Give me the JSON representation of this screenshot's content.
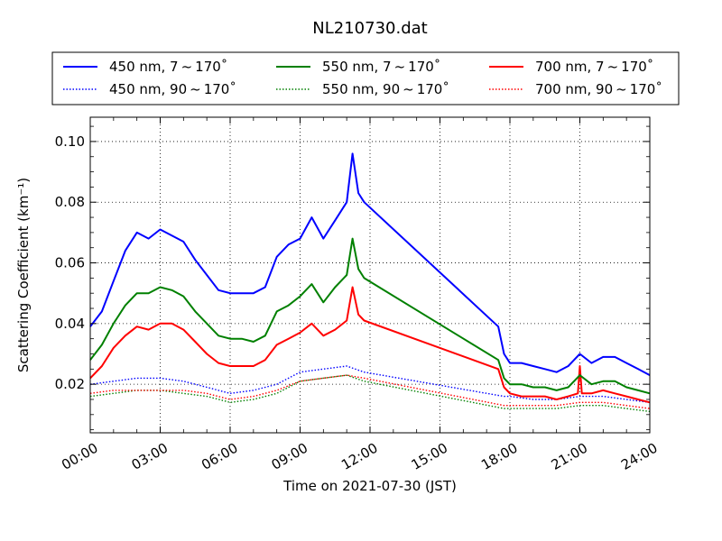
{
  "chart_data": {
    "type": "line",
    "title": "NL210730.dat",
    "xlabel": "Time on 2021-07-30 (JST)",
    "ylabel": "Scattering Coefficient (km⁻¹)",
    "xlim": [
      "00:00",
      "24:00"
    ],
    "ylim": [
      0.004,
      0.108
    ],
    "x_ticks": [
      "00:00",
      "03:00",
      "06:00",
      "09:00",
      "12:00",
      "15:00",
      "18:00",
      "21:00",
      "24:00"
    ],
    "y_ticks": [
      "0.02",
      "0.04",
      "0.06",
      "0.08",
      "0.10"
    ],
    "grid": true,
    "legend_position": "top",
    "series": [
      {
        "name": "450 nm, 7 ~ 170˚",
        "color": "#0000ff",
        "style": "solid",
        "x": [
          "00:00",
          "00:30",
          "01:00",
          "01:30",
          "02:00",
          "02:30",
          "03:00",
          "03:30",
          "04:00",
          "04:30",
          "05:00",
          "05:30",
          "06:00",
          "06:30",
          "07:00",
          "07:30",
          "08:00",
          "08:30",
          "09:00",
          "09:30",
          "10:00",
          "10:30",
          "11:00",
          "11:15",
          "11:30",
          "11:45",
          "17:30",
          "17:45",
          "18:00",
          "18:30",
          "19:00",
          "19:30",
          "20:00",
          "20:30",
          "21:00",
          "21:30",
          "22:00",
          "22:30",
          "23:00",
          "23:30",
          "24:00"
        ],
        "y": [
          0.039,
          0.044,
          0.054,
          0.064,
          0.07,
          0.068,
          0.071,
          0.069,
          0.067,
          0.061,
          0.056,
          0.051,
          0.05,
          0.05,
          0.05,
          0.052,
          0.062,
          0.066,
          0.068,
          0.075,
          0.068,
          0.074,
          0.08,
          0.096,
          0.083,
          0.08,
          0.039,
          0.03,
          0.027,
          0.027,
          0.026,
          0.025,
          0.024,
          0.026,
          0.03,
          0.027,
          0.029,
          0.029,
          0.027,
          0.025,
          0.023
        ]
      },
      {
        "name": "450 nm, 90 ~ 170˚",
        "color": "#0000ff",
        "style": "dotted",
        "x": [
          "00:00",
          "01:00",
          "02:00",
          "03:00",
          "04:00",
          "05:00",
          "06:00",
          "07:00",
          "08:00",
          "09:00",
          "10:00",
          "11:00",
          "11:45",
          "17:45",
          "18:00",
          "19:00",
          "20:00",
          "21:00",
          "22:00",
          "23:00",
          "24:00"
        ],
        "y": [
          0.02,
          0.021,
          0.022,
          0.022,
          0.021,
          0.019,
          0.017,
          0.018,
          0.02,
          0.024,
          0.025,
          0.026,
          0.024,
          0.016,
          0.016,
          0.015,
          0.015,
          0.016,
          0.016,
          0.015,
          0.014
        ]
      },
      {
        "name": "550 nm, 7 ~ 170˚",
        "color": "#008000",
        "style": "solid",
        "x": [
          "00:00",
          "00:30",
          "01:00",
          "01:30",
          "02:00",
          "02:30",
          "03:00",
          "03:30",
          "04:00",
          "04:30",
          "05:00",
          "05:30",
          "06:00",
          "06:30",
          "07:00",
          "07:30",
          "08:00",
          "08:30",
          "09:00",
          "09:30",
          "10:00",
          "10:30",
          "11:00",
          "11:15",
          "11:30",
          "11:45",
          "17:30",
          "17:45",
          "18:00",
          "18:30",
          "19:00",
          "19:30",
          "20:00",
          "20:30",
          "21:00",
          "21:30",
          "22:00",
          "22:30",
          "23:00",
          "23:30",
          "24:00"
        ],
        "y": [
          0.028,
          0.033,
          0.04,
          0.046,
          0.05,
          0.05,
          0.052,
          0.051,
          0.049,
          0.044,
          0.04,
          0.036,
          0.035,
          0.035,
          0.034,
          0.036,
          0.044,
          0.046,
          0.049,
          0.053,
          0.047,
          0.052,
          0.056,
          0.068,
          0.058,
          0.055,
          0.028,
          0.022,
          0.02,
          0.02,
          0.019,
          0.019,
          0.018,
          0.019,
          0.023,
          0.02,
          0.021,
          0.021,
          0.019,
          0.018,
          0.017
        ]
      },
      {
        "name": "550 nm, 90 ~ 170˚",
        "color": "#008000",
        "style": "dotted",
        "x": [
          "00:00",
          "01:00",
          "02:00",
          "03:00",
          "04:00",
          "05:00",
          "06:00",
          "07:00",
          "08:00",
          "09:00",
          "10:00",
          "11:00",
          "11:45",
          "17:45",
          "18:00",
          "19:00",
          "20:00",
          "21:00",
          "22:00",
          "23:00",
          "24:00"
        ],
        "y": [
          0.016,
          0.017,
          0.018,
          0.018,
          0.017,
          0.016,
          0.014,
          0.015,
          0.017,
          0.021,
          0.022,
          0.023,
          0.021,
          0.012,
          0.012,
          0.012,
          0.012,
          0.013,
          0.013,
          0.012,
          0.011
        ]
      },
      {
        "name": "700 nm, 7 ~ 170˚",
        "color": "#ff0000",
        "style": "solid",
        "x": [
          "00:00",
          "00:30",
          "01:00",
          "01:30",
          "02:00",
          "02:30",
          "03:00",
          "03:30",
          "04:00",
          "04:30",
          "05:00",
          "05:30",
          "06:00",
          "06:30",
          "07:00",
          "07:30",
          "08:00",
          "08:30",
          "09:00",
          "09:30",
          "10:00",
          "10:30",
          "11:00",
          "11:15",
          "11:30",
          "11:45",
          "17:30",
          "17:45",
          "18:00",
          "18:30",
          "19:00",
          "19:30",
          "20:00",
          "20:30",
          "20:55",
          "21:00",
          "21:05",
          "21:30",
          "22:00",
          "22:30",
          "23:00",
          "23:30",
          "24:00"
        ],
        "y": [
          0.022,
          0.026,
          0.032,
          0.036,
          0.039,
          0.038,
          0.04,
          0.04,
          0.038,
          0.034,
          0.03,
          0.027,
          0.026,
          0.026,
          0.026,
          0.028,
          0.033,
          0.035,
          0.037,
          0.04,
          0.036,
          0.038,
          0.041,
          0.052,
          0.043,
          0.041,
          0.025,
          0.019,
          0.017,
          0.016,
          0.016,
          0.016,
          0.015,
          0.016,
          0.017,
          0.026,
          0.017,
          0.017,
          0.018,
          0.017,
          0.016,
          0.015,
          0.014
        ]
      },
      {
        "name": "700 nm, 90 ~ 170˚",
        "color": "#ff0000",
        "style": "dotted",
        "x": [
          "00:00",
          "01:00",
          "02:00",
          "03:00",
          "04:00",
          "05:00",
          "06:00",
          "07:00",
          "08:00",
          "09:00",
          "10:00",
          "11:00",
          "11:45",
          "17:45",
          "18:00",
          "19:00",
          "20:00",
          "21:00",
          "22:00",
          "23:00",
          "24:00"
        ],
        "y": [
          0.017,
          0.018,
          0.018,
          0.018,
          0.018,
          0.017,
          0.015,
          0.016,
          0.018,
          0.021,
          0.022,
          0.023,
          0.022,
          0.013,
          0.013,
          0.013,
          0.013,
          0.014,
          0.014,
          0.013,
          0.012
        ]
      }
    ]
  }
}
